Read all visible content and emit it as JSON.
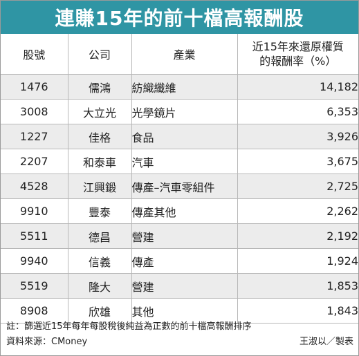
{
  "title": "連賺15年的前十檔高報酬股",
  "headers": {
    "code": "股號",
    "company": "公司",
    "industry": "產業",
    "return_line1": "近15年來還原權質",
    "return_line2": "的報酬率（%）"
  },
  "rows": [
    {
      "code": "1476",
      "company": "儒鴻",
      "industry": "紡織纖維",
      "return": "14,182"
    },
    {
      "code": "3008",
      "company": "大立光",
      "industry": "光學鏡片",
      "return": "6,353"
    },
    {
      "code": "1227",
      "company": "佳格",
      "industry": "食品",
      "return": "3,926"
    },
    {
      "code": "2207",
      "company": "和泰車",
      "industry": "汽車",
      "return": "3,675"
    },
    {
      "code": "4528",
      "company": "江興鍛",
      "industry": "傳產–汽車零組件",
      "return": "2,725"
    },
    {
      "code": "9910",
      "company": "豐泰",
      "industry": "傳產其他",
      "return": "2,262"
    },
    {
      "code": "5511",
      "company": "德昌",
      "industry": "營建",
      "return": "2,192"
    },
    {
      "code": "9940",
      "company": "信義",
      "industry": "傳產",
      "return": "1,924"
    },
    {
      "code": "5519",
      "company": "隆大",
      "industry": "營建",
      "return": "1,853"
    },
    {
      "code": "8908",
      "company": "欣雄",
      "industry": "其他",
      "return": "1,843"
    }
  ],
  "note": "註：篩選近15年每年每股稅後純益為正數的前十檔高報酬排序",
  "source": "資料來源：CMoney",
  "credit": "王淑以／製表",
  "colors": {
    "title_bg": "#2f95a4",
    "stripe": "#ececec",
    "grid": "#b7b7b7"
  }
}
